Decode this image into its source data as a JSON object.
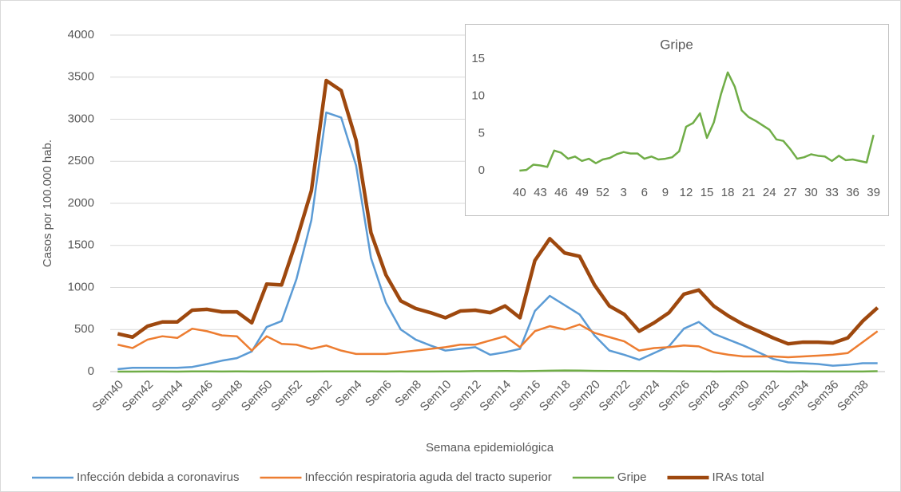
{
  "chart_data": [
    {
      "type": "line",
      "xlabel": "Semana epidemiológica",
      "ylabel": "Casos por 100.000 hab.",
      "categories": [
        "Sem40",
        null,
        "Sem42",
        null,
        "Sem44",
        null,
        "Sem46",
        null,
        "Sem48",
        null,
        "Sem50",
        null,
        "Sem52",
        null,
        "Sem2",
        null,
        "Sem4",
        null,
        "Sem6",
        null,
        "Sem8",
        null,
        "Sem10",
        null,
        "Sem12",
        null,
        "Sem14",
        null,
        "Sem16",
        null,
        "Sem18",
        null,
        "Sem20",
        null,
        "Sem22",
        null,
        "Sem24",
        null,
        "Sem26",
        null,
        "Sem28",
        null,
        "Sem30",
        null,
        "Sem32",
        null,
        "Sem34",
        null,
        "Sem36",
        null,
        "Sem38",
        null
      ],
      "ylim": [
        0,
        4000
      ],
      "yticks": [
        0,
        500,
        1000,
        1500,
        2000,
        2500,
        3000,
        3500,
        4000
      ],
      "grid": true,
      "legend": "bottom",
      "series": [
        {
          "name": "Infección debida a coronavirus",
          "color": "#5b9bd5",
          "values": [
            30,
            45,
            45,
            45,
            45,
            55,
            90,
            130,
            160,
            240,
            530,
            600,
            1100,
            1800,
            3080,
            3020,
            2450,
            1350,
            820,
            500,
            380,
            310,
            250,
            270,
            290,
            200,
            230,
            270,
            720,
            900,
            790,
            680,
            430,
            250,
            200,
            140,
            220,
            300,
            510,
            590,
            450,
            380,
            310,
            230,
            150,
            110,
            100,
            90,
            70,
            80,
            100,
            100
          ]
        },
        {
          "name": "Infección respiratoria aguda del tracto superior",
          "color": "#ed7d31",
          "values": [
            320,
            280,
            380,
            420,
            400,
            510,
            480,
            430,
            420,
            250,
            420,
            330,
            320,
            270,
            310,
            250,
            210,
            210,
            210,
            230,
            250,
            270,
            290,
            320,
            320,
            370,
            420,
            290,
            480,
            540,
            500,
            560,
            460,
            410,
            360,
            250,
            280,
            290,
            310,
            300,
            230,
            200,
            180,
            180,
            180,
            170,
            180,
            190,
            200,
            220,
            350,
            480
          ]
        },
        {
          "name": "Gripe",
          "color": "#70ad47",
          "values": [
            0,
            0.1,
            0.8,
            0.7,
            0.5,
            2.7,
            2.4,
            1.6,
            1.9,
            1.3,
            1.6,
            1.0,
            1.5,
            1.7,
            2.2,
            2.5,
            2.3,
            2.3,
            1.6,
            1.9,
            1.5,
            1.6,
            1.8,
            2.6,
            5.9,
            6.4,
            7.7,
            4.4,
            6.5,
            10.2,
            13.2,
            11.3,
            8.1,
            7.2,
            6.7,
            6.1,
            5.5,
            4.2,
            4.0,
            2.9,
            1.6,
            1.8,
            2.2,
            2.0,
            1.9,
            1.3,
            2.0,
            1.4,
            1.5,
            1.3,
            1.1,
            4.8
          ]
        },
        {
          "name": "IRAs total",
          "color": "#9e480e",
          "values": [
            450,
            410,
            540,
            590,
            590,
            730,
            740,
            710,
            710,
            580,
            1040,
            1030,
            1560,
            2150,
            3460,
            3340,
            2750,
            1650,
            1150,
            840,
            750,
            700,
            640,
            720,
            730,
            700,
            780,
            640,
            1320,
            1580,
            1410,
            1370,
            1030,
            780,
            680,
            480,
            580,
            700,
            920,
            970,
            780,
            660,
            560,
            480,
            400,
            330,
            350,
            350,
            340,
            400,
            600,
            760
          ]
        }
      ]
    },
    {
      "type": "line",
      "title": "Gripe",
      "categories": [
        "40",
        null,
        null,
        "43",
        null,
        null,
        "46",
        null,
        null,
        "49",
        null,
        null,
        "52",
        null,
        null,
        "3",
        null,
        null,
        "6",
        null,
        null,
        "9",
        null,
        null,
        "12",
        null,
        null,
        "15",
        null,
        null,
        "18",
        null,
        null,
        "21",
        null,
        null,
        "24",
        null,
        null,
        "27",
        null,
        null,
        "30",
        null,
        null,
        "33",
        null,
        null,
        "36",
        null,
        null,
        "39"
      ],
      "ylim": [
        0,
        15
      ],
      "yticks": [
        0,
        5,
        10,
        15
      ],
      "color": "#70ad47",
      "values": [
        0,
        0.1,
        0.8,
        0.7,
        0.5,
        2.7,
        2.4,
        1.6,
        1.9,
        1.3,
        1.6,
        1.0,
        1.5,
        1.7,
        2.2,
        2.5,
        2.3,
        2.3,
        1.6,
        1.9,
        1.5,
        1.6,
        1.8,
        2.6,
        5.9,
        6.4,
        7.7,
        4.4,
        6.5,
        10.2,
        13.2,
        11.3,
        8.1,
        7.2,
        6.7,
        6.1,
        5.5,
        4.2,
        4.0,
        2.9,
        1.6,
        1.8,
        2.2,
        2.0,
        1.9,
        1.3,
        2.0,
        1.4,
        1.5,
        1.3,
        1.1,
        4.8
      ]
    }
  ]
}
